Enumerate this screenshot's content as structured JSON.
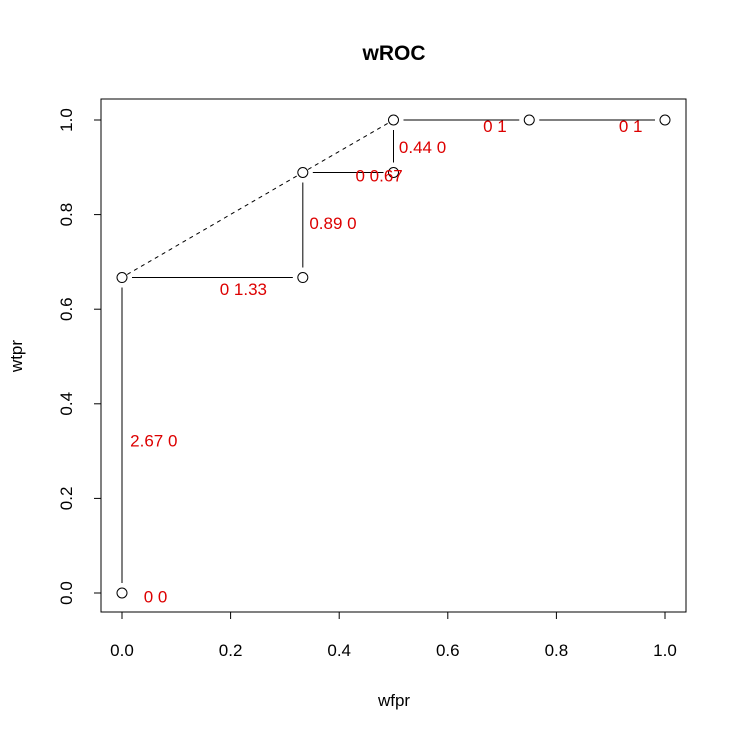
{
  "chart_data": {
    "type": "scatter",
    "title": "wROC",
    "xlabel": "wfpr",
    "ylabel": "wtpr",
    "xlim": [
      0,
      1
    ],
    "ylim": [
      0,
      1
    ],
    "x_ticks": [
      "0.0",
      "0.2",
      "0.4",
      "0.6",
      "0.8",
      "1.0"
    ],
    "y_ticks": [
      "0.0",
      "0.2",
      "0.4",
      "0.6",
      "0.8",
      "1.0"
    ],
    "grid": false,
    "points": [
      {
        "x": 0.0,
        "y": 0.0
      },
      {
        "x": 0.0,
        "y": 0.667
      },
      {
        "x": 0.333,
        "y": 0.667
      },
      {
        "x": 0.333,
        "y": 0.889
      },
      {
        "x": 0.5,
        "y": 0.889
      },
      {
        "x": 0.5,
        "y": 1.0
      },
      {
        "x": 0.75,
        "y": 1.0
      },
      {
        "x": 1.0,
        "y": 1.0
      }
    ],
    "solid_segments": [
      {
        "from": [
          0.0,
          0.0
        ],
        "to": [
          0.0,
          0.667
        ]
      },
      {
        "from": [
          0.0,
          0.667
        ],
        "to": [
          0.333,
          0.667
        ]
      },
      {
        "from": [
          0.333,
          0.667
        ],
        "to": [
          0.333,
          0.889
        ]
      },
      {
        "from": [
          0.333,
          0.889
        ],
        "to": [
          0.5,
          0.889
        ]
      },
      {
        "from": [
          0.5,
          0.889
        ],
        "to": [
          0.5,
          1.0
        ]
      },
      {
        "from": [
          0.5,
          1.0
        ],
        "to": [
          0.75,
          1.0
        ]
      },
      {
        "from": [
          0.75,
          1.0
        ],
        "to": [
          1.0,
          1.0
        ]
      }
    ],
    "dashed_segments": [
      {
        "from": [
          0.0,
          0.667
        ],
        "to": [
          0.333,
          0.889
        ]
      },
      {
        "from": [
          0.333,
          0.889
        ],
        "to": [
          0.5,
          1.0
        ]
      }
    ],
    "annotations": [
      {
        "text": "0 0",
        "x": 0.04,
        "y": -0.02
      },
      {
        "text": "2.67 0",
        "x": 0.015,
        "y": 0.31
      },
      {
        "text": "0 1.33",
        "x": 0.18,
        "y": 0.63
      },
      {
        "text": "0.89 0",
        "x": 0.345,
        "y": 0.77
      },
      {
        "text": "0 0.67",
        "x": 0.43,
        "y": 0.87
      },
      {
        "text": "0.44 0",
        "x": 0.51,
        "y": 0.93
      },
      {
        "text": "0 1",
        "x": 0.665,
        "y": 0.975
      },
      {
        "text": "0 1",
        "x": 0.915,
        "y": 0.975
      }
    ],
    "colors": {
      "annotation": "#dd0000",
      "line": "#000000"
    }
  }
}
